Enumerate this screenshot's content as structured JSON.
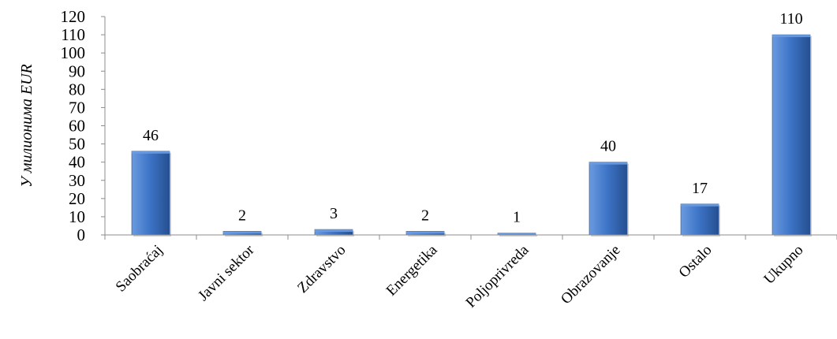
{
  "chart_data": {
    "type": "bar",
    "title": "",
    "xlabel": "",
    "ylabel": "У милионима EUR",
    "ylim": [
      0,
      120
    ],
    "y_ticks": [
      0,
      10,
      20,
      30,
      40,
      50,
      60,
      70,
      80,
      90,
      100,
      110,
      120
    ],
    "categories": [
      "Saobraćaj",
      "Javni sektor",
      "Zdravstvo",
      "Energetika",
      "Poljoprivreda",
      "Obrazovanje",
      "Ostalo",
      "Ukupno"
    ],
    "values": [
      46,
      2,
      3,
      2,
      1,
      40,
      17,
      110
    ],
    "data_labels": [
      "46",
      "2",
      "3",
      "2",
      "1",
      "40",
      "17",
      "110"
    ],
    "grid": false,
    "legend": "none",
    "colors": {
      "bar_light": "#6b9be0",
      "bar_mid": "#3f76c8",
      "bar_dark": "#254f91",
      "axis": "#8c8c8c",
      "text": "#000000"
    }
  }
}
